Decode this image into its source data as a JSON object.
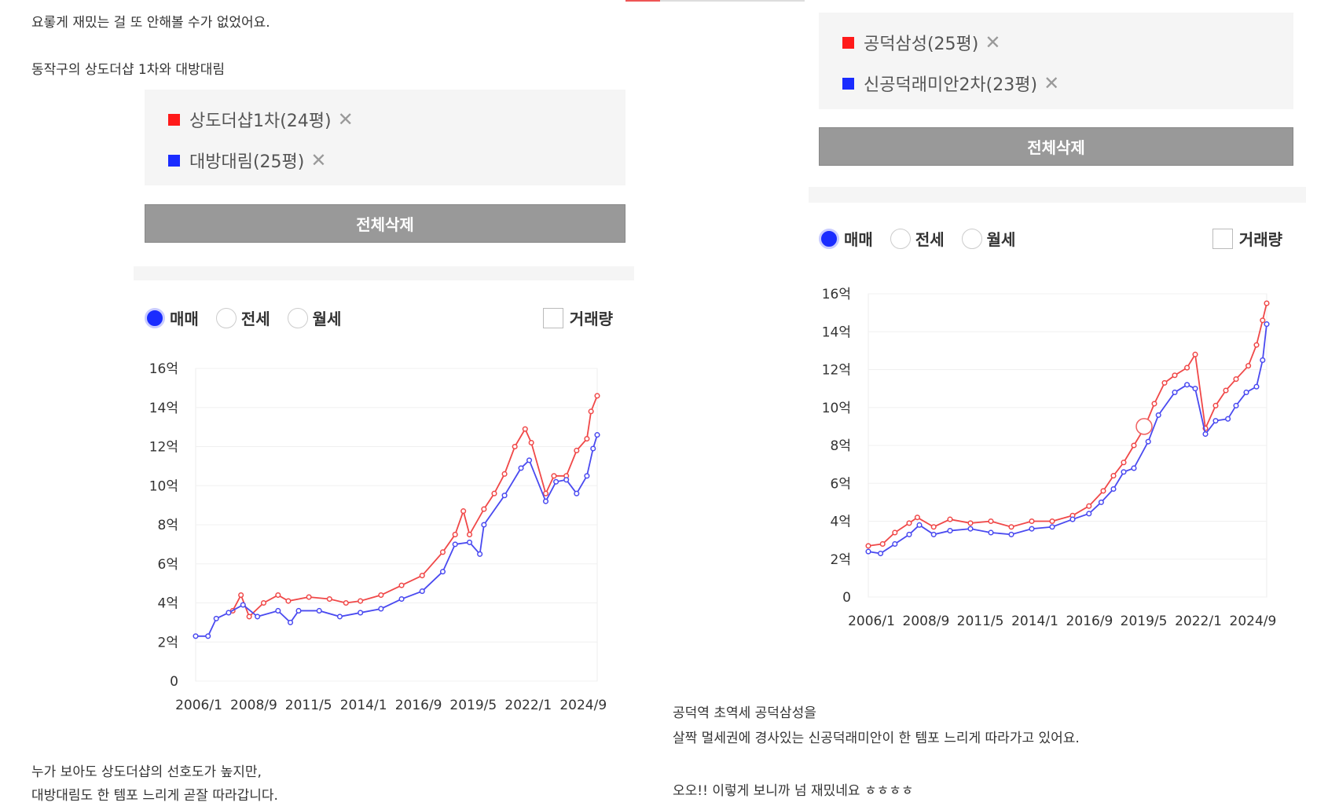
{
  "left": {
    "intro": [
      "요롷게 재밌는 걸 또 안해볼 수가 없었어요.",
      "동작구의 상도더샵 1차와 대방대림"
    ],
    "legend": [
      {
        "label": "상도더샵1차(24평)",
        "color": "#ff1a1a"
      },
      {
        "label": "대방대림(25평)",
        "color": "#1a2cff"
      }
    ],
    "delete_all": "전체삭제",
    "radios": [
      "매매",
      "전세",
      "월세"
    ],
    "volume_label": "거래량",
    "outro": [
      "누가 보아도 상도더샵의 선호도가 높지만,",
      "대방대림도 한 템포 느리게 곧잘 따라갑니다."
    ]
  },
  "right": {
    "legend": [
      {
        "label": "공덕삼성(25평)",
        "color": "#ff1a1a"
      },
      {
        "label": "신공덕래미안2차(23평)",
        "color": "#1a2cff"
      }
    ],
    "delete_all": "전체삭제",
    "radios": [
      "매매",
      "전세",
      "월세"
    ],
    "volume_label": "거래량",
    "outro": [
      "공덕역 초역세 공덕삼성을",
      "살짝 멀세권에 경사있는 신공덕래미안이 한 템포 느리게 따라가고 있어요.",
      "오오!! 이렇게 보니까 넘 재밌네요 ㅎㅎㅎㅎ"
    ]
  },
  "chart_data": [
    {
      "type": "line",
      "xlim": [
        2006,
        2025.5
      ],
      "ylim": [
        0,
        16
      ],
      "yticks": [
        "0",
        "2억",
        "4억",
        "6억",
        "8억",
        "10억",
        "12억",
        "14억",
        "16억"
      ],
      "xticks": [
        {
          "label": "2006/1",
          "x": 2006.0
        },
        {
          "label": "2008/9",
          "x": 2008.67
        },
        {
          "label": "2011/5",
          "x": 2011.33
        },
        {
          "label": "2014/1",
          "x": 2014.0
        },
        {
          "label": "2016/9",
          "x": 2016.67
        },
        {
          "label": "2019/5",
          "x": 2019.33
        },
        {
          "label": "2022/1",
          "x": 2022.0
        },
        {
          "label": "2024/9",
          "x": 2024.67
        }
      ],
      "series": [
        {
          "name": "상도더샵1차(24평)",
          "color": "#f04848",
          "points": [
            [
              2007.8,
              3.6
            ],
            [
              2008.2,
              4.4
            ],
            [
              2008.6,
              3.3
            ],
            [
              2009.3,
              4.0
            ],
            [
              2010,
              4.4
            ],
            [
              2010.5,
              4.1
            ],
            [
              2011.5,
              4.3
            ],
            [
              2012.5,
              4.2
            ],
            [
              2013.3,
              4.0
            ],
            [
              2014,
              4.1
            ],
            [
              2015,
              4.4
            ],
            [
              2016,
              4.9
            ],
            [
              2017,
              5.4
            ],
            [
              2018,
              6.6
            ],
            [
              2018.6,
              7.5
            ],
            [
              2019,
              8.7
            ],
            [
              2019.3,
              7.5
            ],
            [
              2020,
              8.8
            ],
            [
              2020.5,
              9.6
            ],
            [
              2021,
              10.6
            ],
            [
              2021.5,
              12.0
            ],
            [
              2022,
              12.9
            ],
            [
              2022.3,
              12.2
            ],
            [
              2023,
              9.6
            ],
            [
              2023.4,
              10.5
            ],
            [
              2024,
              10.5
            ],
            [
              2024.5,
              11.8
            ],
            [
              2025,
              12.4
            ],
            [
              2025.2,
              13.8
            ],
            [
              2025.5,
              14.6
            ]
          ]
        },
        {
          "name": "대방대림(25평)",
          "color": "#4a4af0",
          "points": [
            [
              2006,
              2.3
            ],
            [
              2006.6,
              2.3
            ],
            [
              2007,
              3.2
            ],
            [
              2007.6,
              3.5
            ],
            [
              2008.3,
              3.9
            ],
            [
              2009,
              3.3
            ],
            [
              2010,
              3.6
            ],
            [
              2010.6,
              3.0
            ],
            [
              2011,
              3.6
            ],
            [
              2012,
              3.6
            ],
            [
              2013,
              3.3
            ],
            [
              2014,
              3.5
            ],
            [
              2015,
              3.7
            ],
            [
              2016,
              4.2
            ],
            [
              2017,
              4.6
            ],
            [
              2018,
              5.6
            ],
            [
              2018.6,
              7.0
            ],
            [
              2019.3,
              7.1
            ],
            [
              2019.8,
              6.5
            ],
            [
              2020,
              8.0
            ],
            [
              2021,
              9.5
            ],
            [
              2021.8,
              10.9
            ],
            [
              2022.2,
              11.3
            ],
            [
              2023,
              9.2
            ],
            [
              2023.5,
              10.2
            ],
            [
              2024,
              10.3
            ],
            [
              2024.5,
              9.6
            ],
            [
              2025,
              10.5
            ],
            [
              2025.3,
              11.9
            ],
            [
              2025.5,
              12.6
            ]
          ]
        }
      ]
    },
    {
      "type": "line",
      "xlim": [
        2006,
        2025.5
      ],
      "ylim": [
        0,
        16
      ],
      "yticks": [
        "0",
        "2억",
        "4억",
        "6억",
        "8억",
        "10억",
        "12억",
        "14억",
        "16억"
      ],
      "xticks": [
        {
          "label": "2006/1",
          "x": 2006.0
        },
        {
          "label": "2008/9",
          "x": 2008.67
        },
        {
          "label": "2011/5",
          "x": 2011.33
        },
        {
          "label": "2014/1",
          "x": 2014.0
        },
        {
          "label": "2016/9",
          "x": 2016.67
        },
        {
          "label": "2019/5",
          "x": 2019.33
        },
        {
          "label": "2022/1",
          "x": 2022.0
        },
        {
          "label": "2024/9",
          "x": 2024.67
        }
      ],
      "highlight": [
        2019.5,
        9.0
      ],
      "series": [
        {
          "name": "공덕삼성(25평)",
          "color": "#f04848",
          "points": [
            [
              2006,
              2.7
            ],
            [
              2006.7,
              2.8
            ],
            [
              2007.3,
              3.4
            ],
            [
              2008,
              3.9
            ],
            [
              2008.4,
              4.2
            ],
            [
              2009.2,
              3.7
            ],
            [
              2010,
              4.1
            ],
            [
              2011,
              3.9
            ],
            [
              2012,
              4.0
            ],
            [
              2013,
              3.7
            ],
            [
              2014,
              4.0
            ],
            [
              2015,
              4.0
            ],
            [
              2016,
              4.3
            ],
            [
              2016.8,
              4.8
            ],
            [
              2017.5,
              5.6
            ],
            [
              2018,
              6.4
            ],
            [
              2018.5,
              7.1
            ],
            [
              2019,
              8.0
            ],
            [
              2019.5,
              8.9
            ],
            [
              2020,
              10.2
            ],
            [
              2020.5,
              11.3
            ],
            [
              2021,
              11.7
            ],
            [
              2021.6,
              12.1
            ],
            [
              2022,
              12.8
            ],
            [
              2022.5,
              8.9
            ],
            [
              2023,
              10.1
            ],
            [
              2023.5,
              10.9
            ],
            [
              2024,
              11.5
            ],
            [
              2024.6,
              12.2
            ],
            [
              2025,
              13.3
            ],
            [
              2025.3,
              14.6
            ],
            [
              2025.5,
              15.5
            ]
          ]
        },
        {
          "name": "신공덕래미안2차(23평)",
          "color": "#4a4af0",
          "points": [
            [
              2006,
              2.4
            ],
            [
              2006.6,
              2.3
            ],
            [
              2007.3,
              2.8
            ],
            [
              2008,
              3.3
            ],
            [
              2008.5,
              3.8
            ],
            [
              2009.2,
              3.3
            ],
            [
              2010,
              3.5
            ],
            [
              2011,
              3.6
            ],
            [
              2012,
              3.4
            ],
            [
              2013,
              3.3
            ],
            [
              2014,
              3.6
            ],
            [
              2015,
              3.7
            ],
            [
              2016,
              4.1
            ],
            [
              2016.8,
              4.4
            ],
            [
              2017.4,
              5.0
            ],
            [
              2018,
              5.7
            ],
            [
              2018.5,
              6.6
            ],
            [
              2019,
              6.8
            ],
            [
              2019.7,
              8.2
            ],
            [
              2020.2,
              9.6
            ],
            [
              2021,
              10.8
            ],
            [
              2021.6,
              11.2
            ],
            [
              2022,
              11.0
            ],
            [
              2022.5,
              8.6
            ],
            [
              2023,
              9.3
            ],
            [
              2023.6,
              9.4
            ],
            [
              2024,
              10.1
            ],
            [
              2024.5,
              10.8
            ],
            [
              2025,
              11.1
            ],
            [
              2025.3,
              12.5
            ],
            [
              2025.5,
              14.4
            ]
          ]
        }
      ]
    }
  ]
}
